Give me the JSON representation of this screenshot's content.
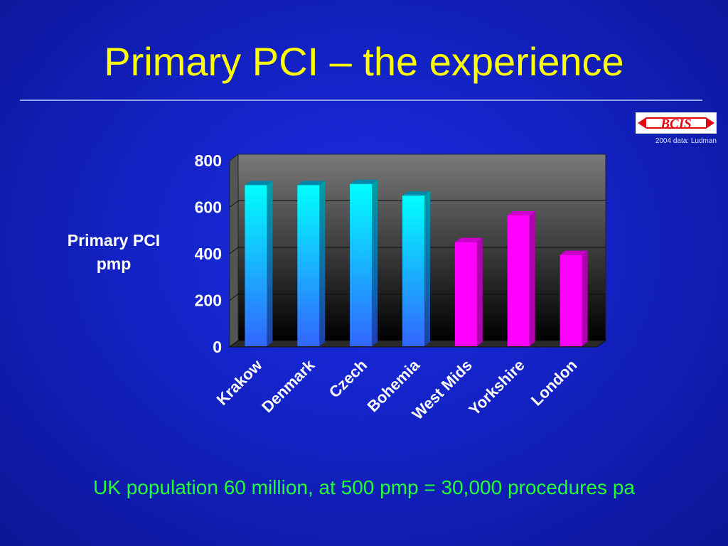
{
  "slide": {
    "title": "Primary PCI – the experience",
    "logo_text": "BCIS",
    "source_note": "2004 data: Ludman",
    "footer": "UK population 60 million, at 500 pmp = 30,000 procedures pa"
  },
  "colors": {
    "title": "#ffff00",
    "footer": "#22ff33",
    "cyan_bar": "#00ffff",
    "magenta_bar": "#ff00ff",
    "logo_red": "#e30613"
  },
  "chart_data": {
    "type": "bar",
    "title": "",
    "xlabel": "",
    "ylabel": "Primary PCI pmp",
    "ylim": [
      0,
      800
    ],
    "yticks": [
      0,
      200,
      400,
      600,
      800
    ],
    "grid": true,
    "categories": [
      "Krakow",
      "Denmark",
      "Czech",
      "Bohemia",
      "West Mids",
      "Yorkshire",
      "London"
    ],
    "values": [
      695,
      695,
      700,
      650,
      450,
      565,
      395
    ],
    "bar_colors": [
      "#00ffff",
      "#00ffff",
      "#00ffff",
      "#00ffff",
      "#ff00ff",
      "#ff00ff",
      "#ff00ff"
    ]
  }
}
